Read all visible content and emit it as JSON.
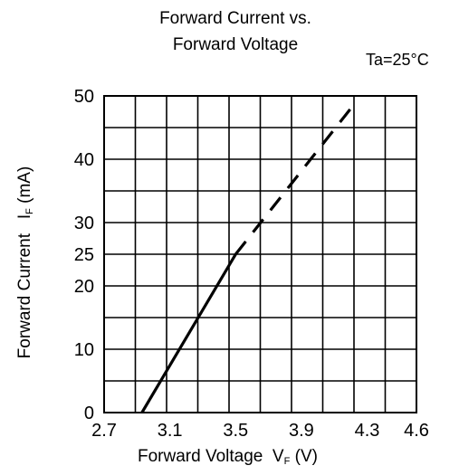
{
  "chart_data": {
    "type": "line",
    "title": [
      "Forward Current vs.",
      "Forward Voltage"
    ],
    "condition": "Ta=25°C",
    "xlabel": {
      "main": "Forward Voltage",
      "symbol": "V",
      "sub": "F",
      "unit": "(V)"
    },
    "ylabel": {
      "main": "Forward Current",
      "symbol": "I",
      "sub": "F",
      "unit": "(mA)"
    },
    "xlim": [
      2.7,
      4.6
    ],
    "ylim": [
      0,
      50
    ],
    "x_ticks": [
      "2.7",
      "3.1",
      "3.5",
      "3.9",
      "4.3",
      "4.6"
    ],
    "y_ticks": [
      "0",
      "10",
      "20",
      "25",
      "30",
      "40",
      "50"
    ],
    "grid": true,
    "series": [
      {
        "style": "solid",
        "x": [
          2.93,
          3.5
        ],
        "y": [
          0,
          25
        ]
      },
      {
        "style": "dashed",
        "x": [
          3.5,
          4.2
        ],
        "y": [
          25,
          48
        ]
      }
    ]
  }
}
